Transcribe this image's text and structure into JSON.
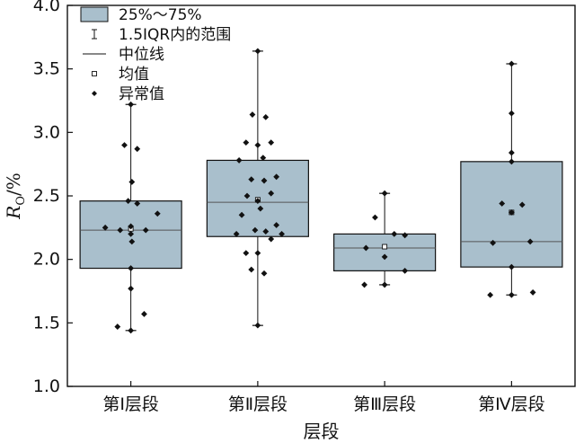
{
  "chart_data": {
    "type": "box",
    "xlabel": "层段",
    "ylabel": {
      "main": "R",
      "sub": "O",
      "suffix": "/%"
    },
    "ylim": [
      1.0,
      4.0
    ],
    "yticks": [
      "1.0",
      "1.5",
      "2.0",
      "2.5",
      "3.0",
      "3.5",
      "4.0"
    ],
    "box_color": "#a9bfcc",
    "categories": [
      "第Ⅰ层段",
      "第Ⅱ层段",
      "第Ⅲ层段",
      "第Ⅳ层段"
    ],
    "boxes": [
      {
        "name": "第Ⅰ层段",
        "q1": 1.93,
        "median": 2.23,
        "q3": 2.46,
        "mean": 2.24,
        "whisker_low": 1.44,
        "whisker_high": 3.22,
        "points": [
          [
            -0.48,
            2.25
          ],
          [
            -0.2,
            2.23
          ],
          [
            0.0,
            2.26
          ],
          [
            0.12,
            2.44
          ],
          [
            -0.05,
            2.46
          ],
          [
            0.28,
            2.23
          ],
          [
            0.5,
            2.36
          ],
          [
            0.02,
            2.14
          ],
          [
            0.0,
            2.2
          ],
          [
            0.02,
            2.61
          ],
          [
            -0.12,
            2.9
          ],
          [
            0.12,
            2.87
          ],
          [
            0.0,
            1.93
          ],
          [
            0.0,
            1.77
          ],
          [
            0.25,
            1.57
          ],
          [
            -0.25,
            1.47
          ],
          [
            0.0,
            1.44
          ],
          [
            0.0,
            3.22
          ]
        ]
      },
      {
        "name": "第Ⅱ层段",
        "q1": 2.18,
        "median": 2.45,
        "q3": 2.78,
        "mean": 2.47,
        "whisker_low": 1.48,
        "whisker_high": 3.64,
        "points": [
          [
            -0.1,
            3.14
          ],
          [
            0.15,
            3.12
          ],
          [
            -0.22,
            2.92
          ],
          [
            0.0,
            2.9
          ],
          [
            0.25,
            2.92
          ],
          [
            -0.35,
            2.78
          ],
          [
            0.1,
            2.8
          ],
          [
            -0.12,
            2.63
          ],
          [
            0.12,
            2.62
          ],
          [
            0.35,
            2.65
          ],
          [
            -0.2,
            2.5
          ],
          [
            0.0,
            2.46
          ],
          [
            0.25,
            2.52
          ],
          [
            -0.3,
            2.35
          ],
          [
            0.05,
            2.4
          ],
          [
            -0.05,
            2.23
          ],
          [
            0.15,
            2.22
          ],
          [
            0.35,
            2.27
          ],
          [
            -0.4,
            2.2
          ],
          [
            0.45,
            2.2
          ],
          [
            -0.22,
            2.05
          ],
          [
            0.0,
            2.05
          ],
          [
            0.25,
            2.16
          ],
          [
            -0.12,
            1.92
          ],
          [
            0.12,
            1.89
          ],
          [
            0.0,
            1.48
          ],
          [
            0.0,
            3.64
          ]
        ]
      },
      {
        "name": "第Ⅲ层段",
        "q1": 1.91,
        "median": 2.09,
        "q3": 2.2,
        "mean": 2.1,
        "whisker_low": 1.8,
        "whisker_high": 2.52,
        "points": [
          [
            -0.35,
            2.09
          ],
          [
            -0.18,
            2.33
          ],
          [
            0.0,
            2.52
          ],
          [
            0.18,
            2.2
          ],
          [
            0.38,
            2.19
          ],
          [
            0.0,
            2.02
          ],
          [
            -0.38,
            1.8
          ],
          [
            0.0,
            1.8
          ],
          [
            0.38,
            1.91
          ]
        ]
      },
      {
        "name": "第Ⅳ层段",
        "q1": 1.94,
        "median": 2.14,
        "q3": 2.77,
        "mean": 2.37,
        "whisker_low": 1.72,
        "whisker_high": 3.54,
        "points": [
          [
            0.0,
            3.54
          ],
          [
            0.0,
            3.15
          ],
          [
            0.0,
            2.84
          ],
          [
            0.0,
            2.77
          ],
          [
            -0.18,
            2.44
          ],
          [
            0.2,
            2.43
          ],
          [
            0.0,
            2.37
          ],
          [
            -0.35,
            2.13
          ],
          [
            0.35,
            2.14
          ],
          [
            0.0,
            1.94
          ],
          [
            0.0,
            1.72
          ],
          [
            -0.4,
            1.72
          ],
          [
            0.4,
            1.74
          ]
        ]
      }
    ],
    "legend": {
      "placement": "top-left",
      "items": [
        {
          "symbol": "box",
          "label": "25%～75%"
        },
        {
          "symbol": "whisker",
          "label": "1.5IQR内的范围"
        },
        {
          "symbol": "median",
          "label": "中位线"
        },
        {
          "symbol": "mean",
          "label": "均值"
        },
        {
          "symbol": "outlier",
          "label": "异常值"
        }
      ]
    }
  }
}
